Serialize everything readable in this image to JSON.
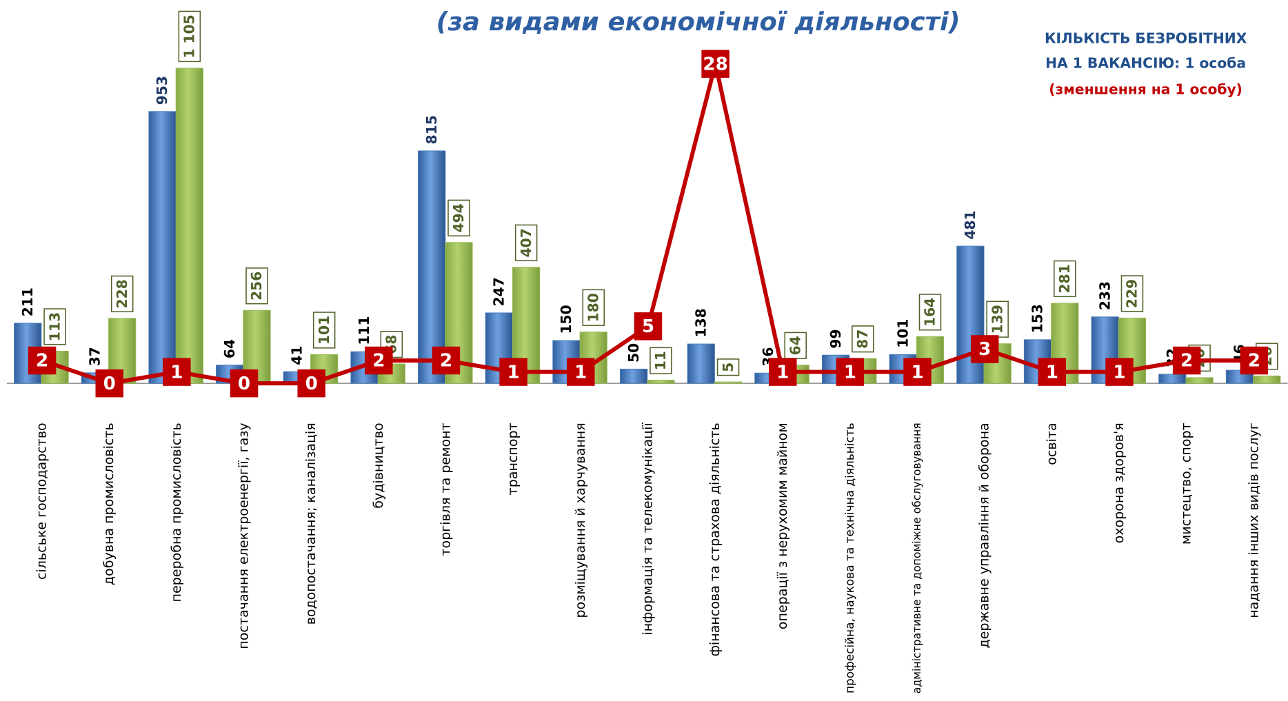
{
  "chart_data": {
    "type": "bar",
    "title": "(за видами економічної діяльності)",
    "annotation": [
      "КІЛЬКІСТЬ БЕЗРОБІТНИХ",
      "НА 1 ВАКАНСІЮ: 1 особа",
      "(зменшення на 1 особу)"
    ],
    "categories": [
      "сільське господарство",
      "добувна промисловість",
      "переробна промисловість",
      "постачання електроенергії, газу",
      "водопостачання; каналізація",
      "будівництво",
      "торгівля та ремонт",
      "транспорт",
      "розміщування й харчування",
      "інформація та телекомунікації",
      "фінансова та страхова діяльність",
      "операції з нерухомим майном",
      "професійна, наукова та технічна діяльність",
      "адміністративне та допоміжне обслуговування",
      "державне управління й оборона",
      "освіта",
      "охорона здоров'я",
      "мистецтво, спорт",
      "надання інших видів послуг"
    ],
    "series": [
      {
        "color": "#4a7ebb",
        "values": [
          211,
          37,
          953,
          64,
          41,
          111,
          815,
          247,
          150,
          50,
          138,
          36,
          99,
          101,
          481,
          153,
          233,
          32,
          46
        ]
      },
      {
        "color": "#9bbb59",
        "values": [
          113,
          228,
          1105,
          256,
          101,
          68,
          494,
          407,
          180,
          11,
          5,
          64,
          87,
          164,
          139,
          281,
          229,
          20,
          26
        ],
        "value_labels": [
          "113",
          "228",
          "1 105",
          "256",
          "101",
          "68",
          "494",
          "407",
          "180",
          "11",
          "5",
          "64",
          "87",
          "164",
          "139",
          "281",
          "229",
          "20",
          "26"
        ]
      },
      {
        "type": "line",
        "axis": "y2",
        "color": "#c00000",
        "values": [
          2,
          0,
          1,
          0,
          0,
          2,
          2,
          1,
          1,
          5,
          28,
          1,
          1,
          1,
          3,
          1,
          1,
          2,
          2
        ]
      }
    ],
    "ylim": [
      0,
      1200
    ],
    "y2lim": [
      0,
      30
    ]
  }
}
